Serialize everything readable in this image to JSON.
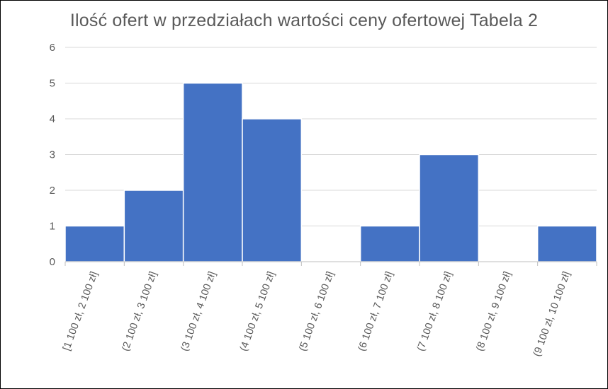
{
  "chart_data": {
    "type": "bar",
    "title": "Ilość ofert w przedziałach wartości ceny ofertowej Tabela 2",
    "categories": [
      "[1 100 zł, 2 100 zł]",
      "(2 100 zł, 3 100 zł]",
      "(3 100 zł, 4 100 zł]",
      "(4 100 zł, 5 100 zł]",
      "(5 100 zł, 6 100 zł]",
      "(6 100 zł, 7 100 zł]",
      "(7 100 zł, 8 100 zł]",
      "(8 100 zł, 9 100 zł]",
      "(9 100 zł, 10 100 zł]"
    ],
    "values": [
      1,
      2,
      5,
      4,
      0,
      1,
      3,
      0,
      1
    ],
    "ylim": [
      0,
      6
    ],
    "yticks": [
      "0",
      "1",
      "2",
      "3",
      "4",
      "5",
      "6"
    ],
    "xlabel": "",
    "ylabel": "",
    "grid": true,
    "legend": false,
    "bar_color": "#4472c4",
    "bar_edge_color": "#ffffff"
  }
}
